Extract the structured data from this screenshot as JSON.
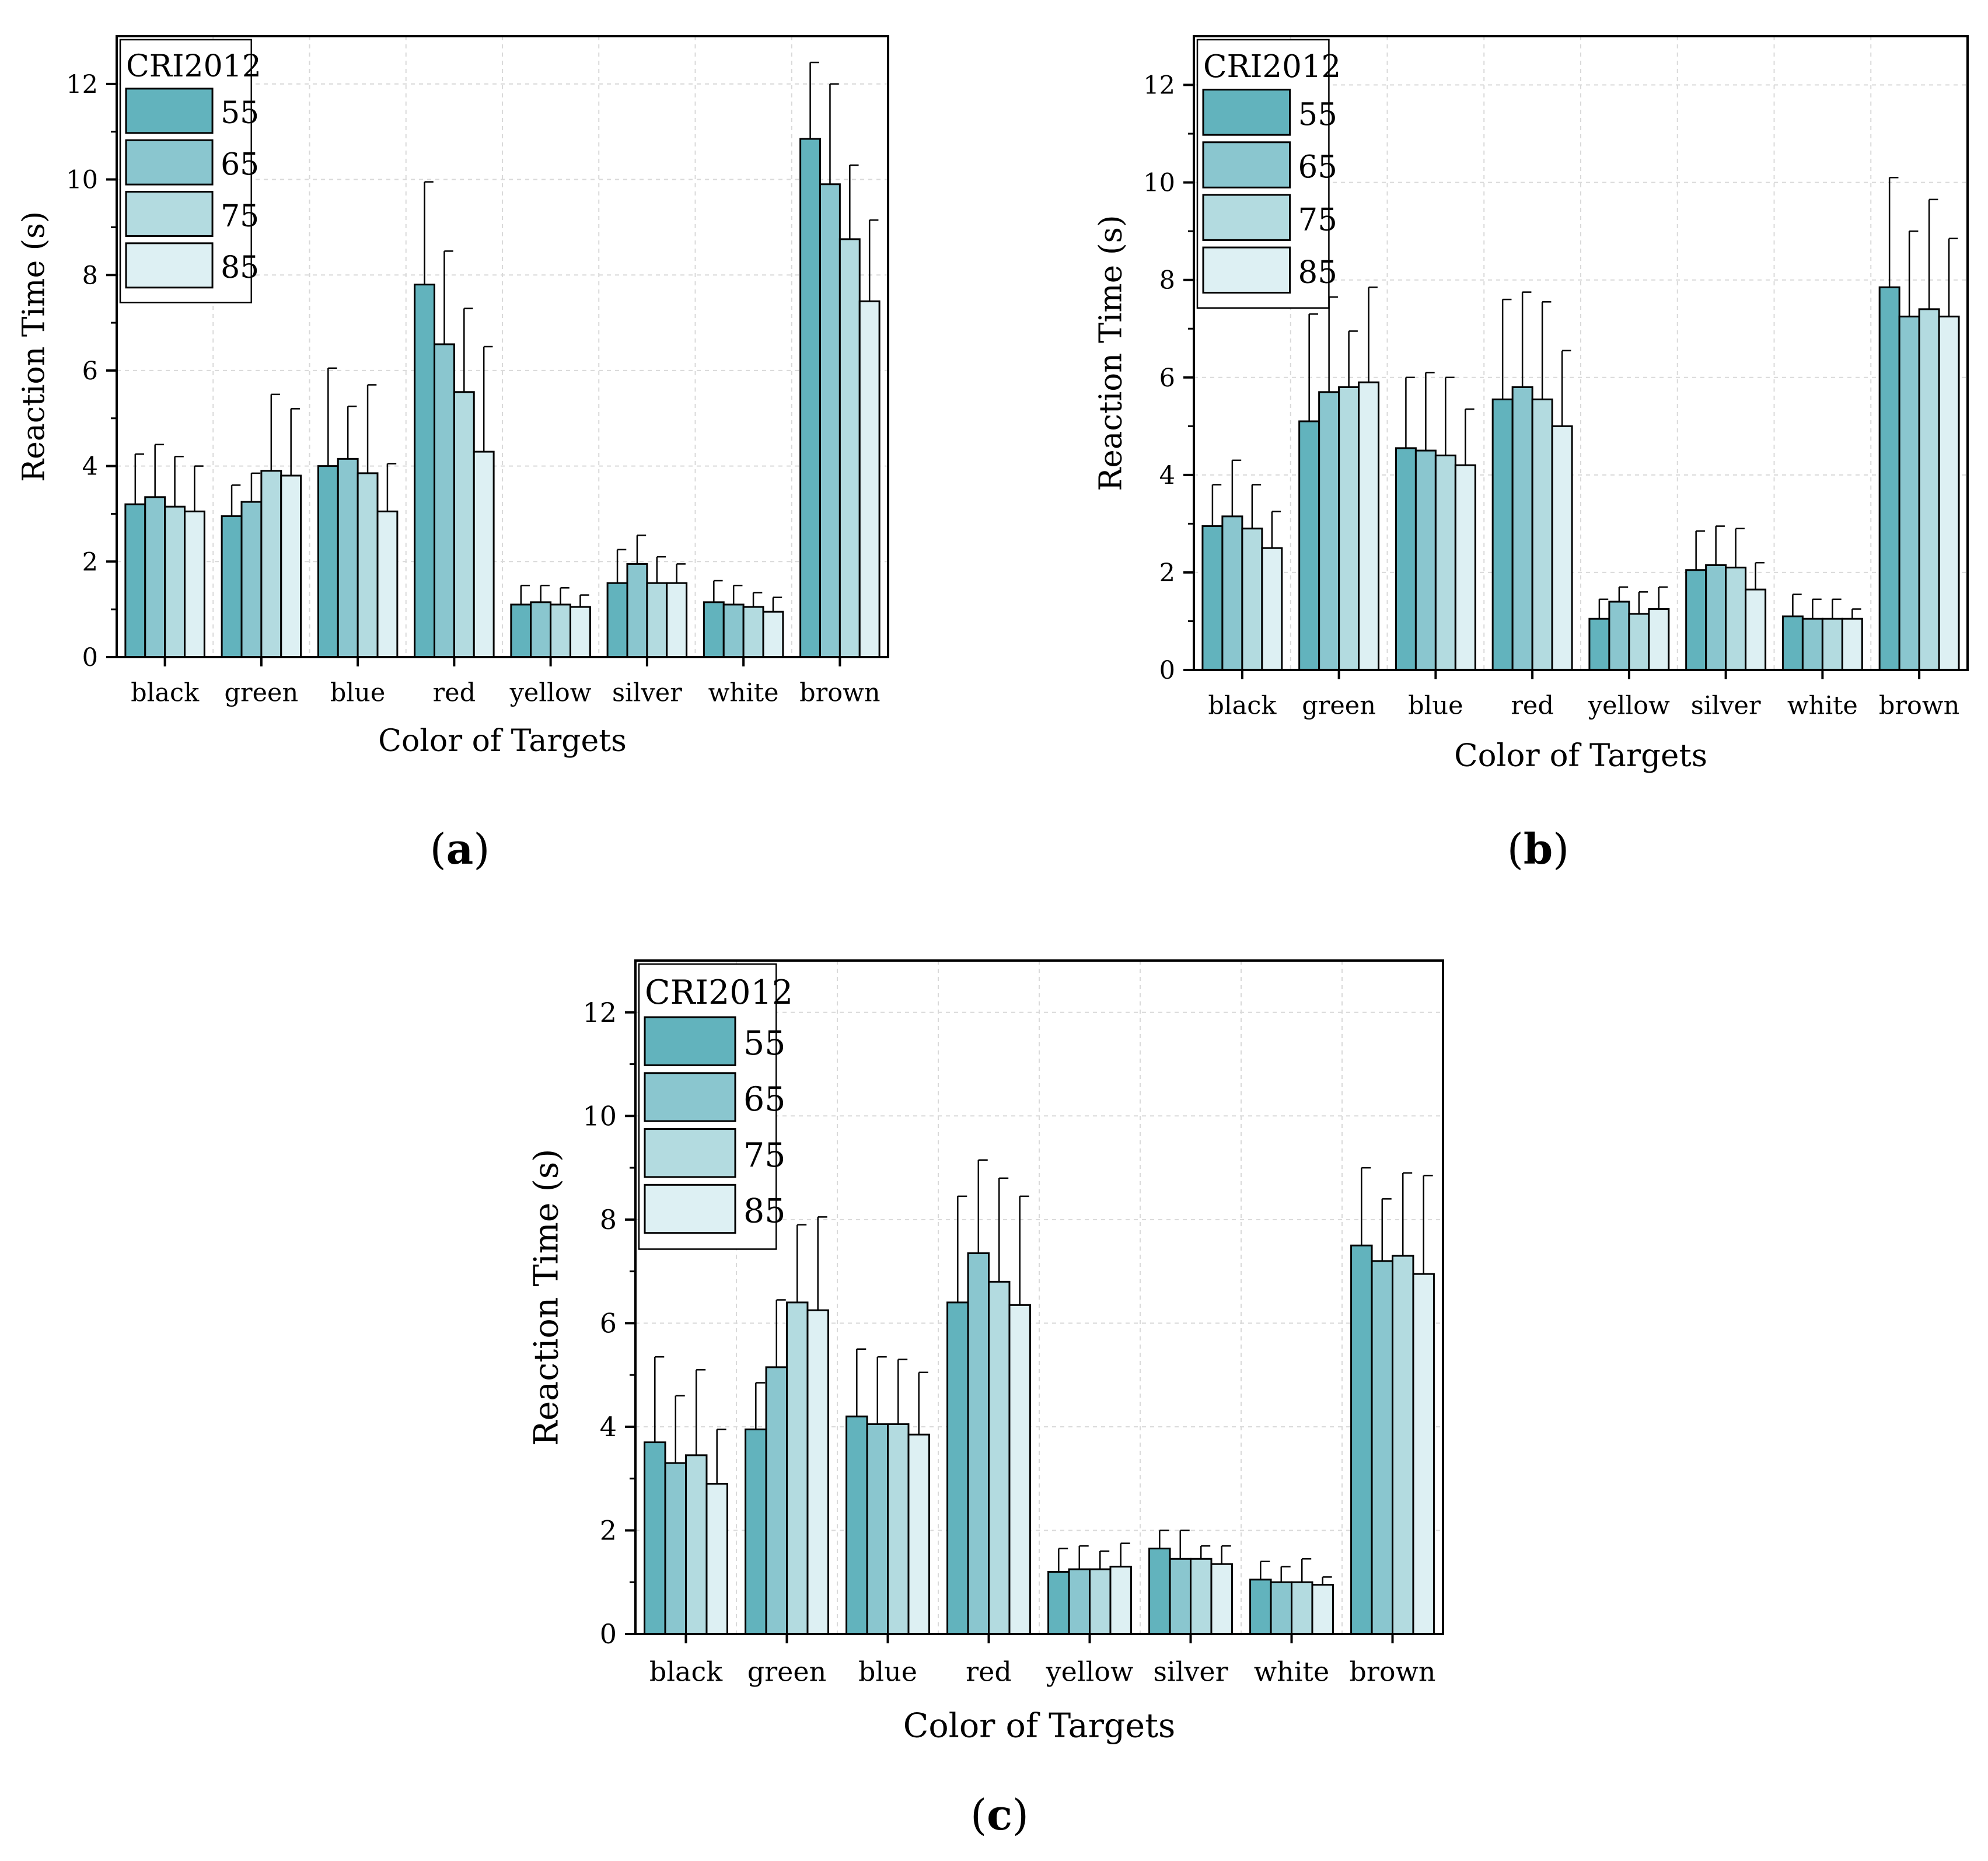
{
  "figure": {
    "panels": [
      {
        "letter": "a",
        "caption_open": "(",
        "caption_close": ")"
      },
      {
        "letter": "b",
        "caption_open": "(",
        "caption_close": ")"
      },
      {
        "letter": "c",
        "caption_open": "(",
        "caption_close": ")"
      }
    ]
  },
  "colors": {
    "series": [
      "#62b3bd",
      "#8ac6cf",
      "#b3dbe0",
      "#ddf0f3"
    ],
    "axis": "#000000",
    "grid": "#d9d9d9"
  },
  "chart_data": [
    {
      "type": "bar",
      "panel": "a",
      "xlabel": "Color of Targets",
      "ylabel": "Reaction Time (s)",
      "ylim": [
        0,
        13
      ],
      "yticks": [
        0,
        2,
        4,
        6,
        8,
        10,
        12
      ],
      "grid": true,
      "legend_title": "CRI2012",
      "legend_position": "top-left",
      "categories": [
        "black",
        "green",
        "blue",
        "red",
        "yellow",
        "silver",
        "white",
        "brown"
      ],
      "series": [
        {
          "name": "55",
          "values": [
            3.2,
            2.95,
            4.0,
            7.8,
            1.1,
            1.55,
            1.15,
            10.85
          ],
          "errors": [
            1.05,
            0.65,
            2.05,
            2.15,
            0.4,
            0.7,
            0.45,
            1.6
          ]
        },
        {
          "name": "65",
          "values": [
            3.35,
            3.25,
            4.15,
            6.55,
            1.15,
            1.95,
            1.1,
            9.9
          ],
          "errors": [
            1.1,
            0.6,
            1.1,
            1.95,
            0.35,
            0.6,
            0.4,
            2.1
          ]
        },
        {
          "name": "75",
          "values": [
            3.15,
            3.9,
            3.85,
            5.55,
            1.1,
            1.55,
            1.05,
            8.75
          ],
          "errors": [
            1.05,
            1.6,
            1.85,
            1.75,
            0.35,
            0.55,
            0.3,
            1.55
          ]
        },
        {
          "name": "85",
          "values": [
            3.05,
            3.8,
            3.05,
            4.3,
            1.05,
            1.55,
            0.95,
            7.45
          ],
          "errors": [
            0.95,
            1.4,
            1.0,
            2.2,
            0.25,
            0.4,
            0.3,
            1.7
          ]
        }
      ]
    },
    {
      "type": "bar",
      "panel": "b",
      "xlabel": "Color of Targets",
      "ylabel": "Reaction Time (s)",
      "ylim": [
        0,
        13
      ],
      "yticks": [
        0,
        2,
        4,
        6,
        8,
        10,
        12
      ],
      "grid": true,
      "legend_title": "CRI2012",
      "legend_position": "top-left",
      "categories": [
        "black",
        "green",
        "blue",
        "red",
        "yellow",
        "silver",
        "white",
        "brown"
      ],
      "series": [
        {
          "name": "55",
          "values": [
            2.95,
            5.1,
            4.55,
            5.55,
            1.05,
            2.05,
            1.1,
            7.85
          ],
          "errors": [
            0.85,
            2.2,
            1.45,
            2.05,
            0.4,
            0.8,
            0.45,
            2.25
          ]
        },
        {
          "name": "65",
          "values": [
            3.15,
            5.7,
            4.5,
            5.8,
            1.4,
            2.15,
            1.05,
            7.25
          ],
          "errors": [
            1.15,
            1.95,
            1.6,
            1.95,
            0.3,
            0.8,
            0.4,
            1.75
          ]
        },
        {
          "name": "75",
          "values": [
            2.9,
            5.8,
            4.4,
            5.55,
            1.15,
            2.1,
            1.05,
            7.4
          ],
          "errors": [
            0.9,
            1.15,
            1.6,
            2.0,
            0.45,
            0.8,
            0.4,
            2.25
          ]
        },
        {
          "name": "85",
          "values": [
            2.5,
            5.9,
            4.2,
            5.0,
            1.25,
            1.65,
            1.05,
            7.25
          ],
          "errors": [
            0.75,
            1.95,
            1.15,
            1.55,
            0.45,
            0.55,
            0.2,
            1.6
          ]
        }
      ]
    },
    {
      "type": "bar",
      "panel": "c",
      "xlabel": "Color of Targets",
      "ylabel": "Reaction Time (s)",
      "ylim": [
        0,
        13
      ],
      "yticks": [
        0,
        2,
        4,
        6,
        8,
        10,
        12
      ],
      "grid": true,
      "legend_title": "CRI2012",
      "legend_position": "top-left",
      "categories": [
        "black",
        "green",
        "blue",
        "red",
        "yellow",
        "silver",
        "white",
        "brown"
      ],
      "series": [
        {
          "name": "55",
          "values": [
            3.7,
            3.95,
            4.2,
            6.4,
            1.2,
            1.65,
            1.05,
            7.5
          ],
          "errors": [
            1.65,
            0.9,
            1.3,
            2.05,
            0.45,
            0.35,
            0.35,
            1.5
          ]
        },
        {
          "name": "65",
          "values": [
            3.3,
            5.15,
            4.05,
            7.35,
            1.25,
            1.45,
            1.0,
            7.2
          ],
          "errors": [
            1.3,
            1.3,
            1.3,
            1.8,
            0.45,
            0.55,
            0.3,
            1.2
          ]
        },
        {
          "name": "75",
          "values": [
            3.45,
            6.4,
            4.05,
            6.8,
            1.25,
            1.45,
            1.0,
            7.3
          ],
          "errors": [
            1.65,
            1.5,
            1.25,
            2.0,
            0.35,
            0.25,
            0.45,
            1.6
          ]
        },
        {
          "name": "85",
          "values": [
            2.9,
            6.25,
            3.85,
            6.35,
            1.3,
            1.35,
            0.95,
            6.95
          ],
          "errors": [
            1.05,
            1.8,
            1.2,
            2.1,
            0.45,
            0.35,
            0.15,
            1.9
          ]
        }
      ]
    }
  ]
}
